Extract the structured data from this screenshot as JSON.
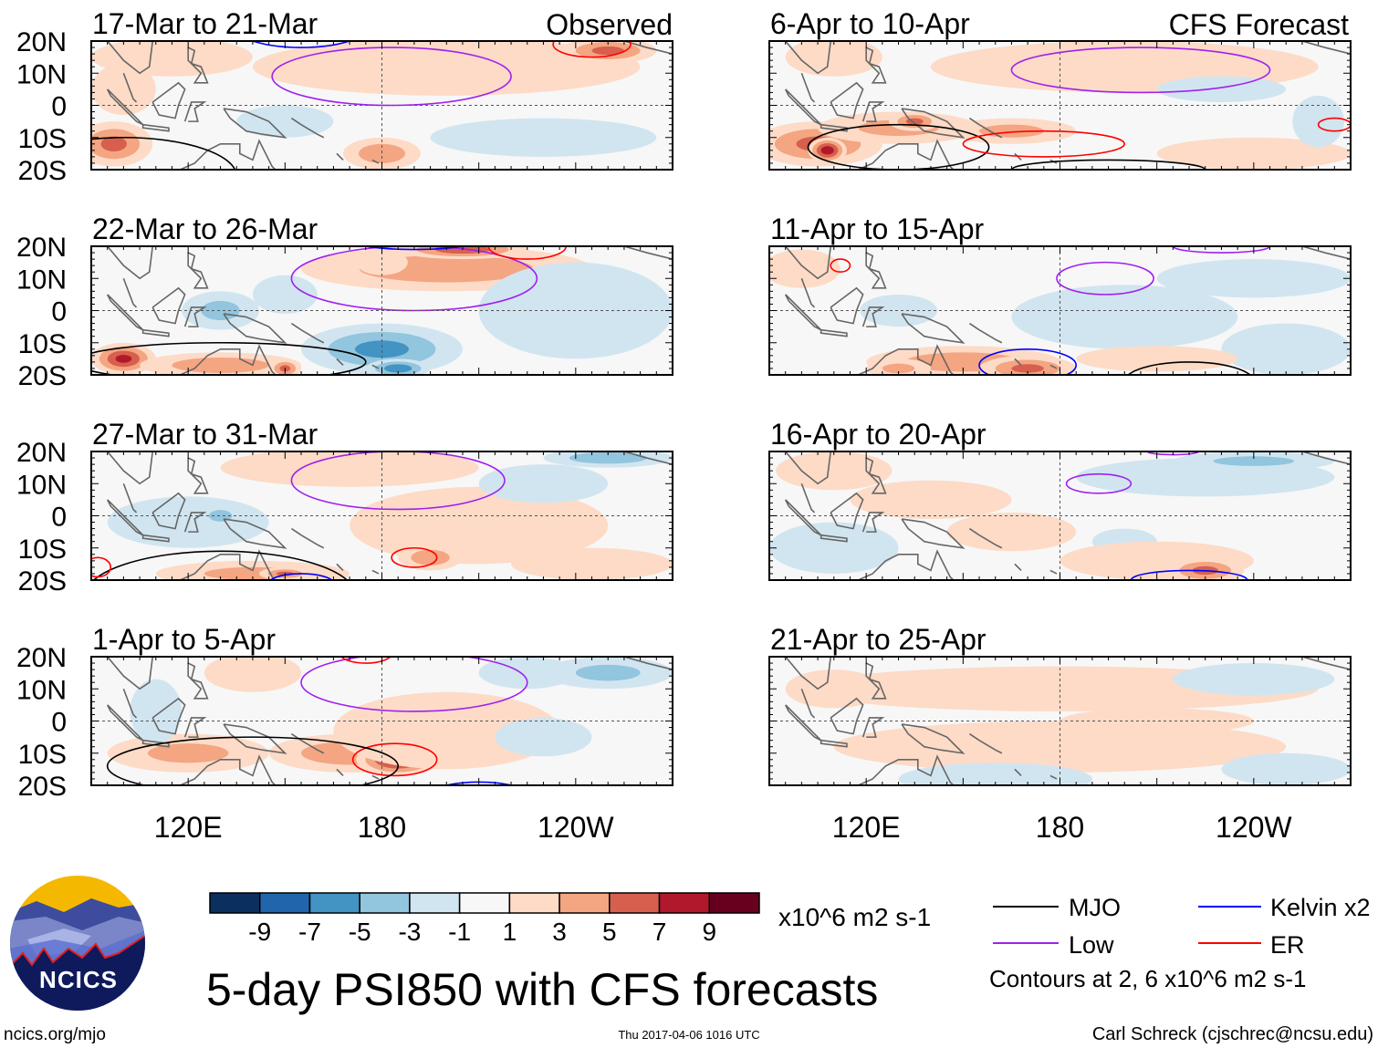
{
  "figure_title": "5-day PSI850 with CFS forecasts",
  "headers": {
    "observed": "Observed",
    "forecast": "CFS Forecast"
  },
  "lat_labels": [
    "20N",
    "10N",
    "0",
    "10S",
    "20S"
  ],
  "lon_labels": [
    "120E",
    "180",
    "120W"
  ],
  "colorbar": {
    "labels": [
      "-9",
      "-7",
      "-5",
      "-3",
      "-1",
      "1",
      "3",
      "5",
      "7",
      "9"
    ],
    "units": "x10^6 m2 s-1",
    "colors": [
      "#0b2f5e",
      "#2166ac",
      "#4393c3",
      "#92c5de",
      "#d1e5f0",
      "#f7f7f7",
      "#fddbc7",
      "#f4a582",
      "#d6604d",
      "#b2182b",
      "#67001f"
    ]
  },
  "legend": {
    "items": [
      {
        "label": "MJO",
        "color": "#000000"
      },
      {
        "label": "Kelvin x2",
        "color": "#0000ff"
      },
      {
        "label": "Low",
        "color": "#a020f0"
      },
      {
        "label": "ER",
        "color": "#ff0000"
      }
    ],
    "note": "Contours at 2, 6 x10^6 m2 s-1"
  },
  "footer": {
    "url": "ncics.org/mjo",
    "timestamp": "Thu 2017-04-06 1016 UTC",
    "credit": "Carl Schreck (cjschrec@ncsu.edu)"
  },
  "logo": {
    "text": "NCICS"
  },
  "chart_data": {
    "type": "heatmap",
    "lon_range": [
      90,
      270
    ],
    "lat_range": [
      -20,
      20
    ],
    "panels": [
      {
        "title": "17-Mar to 21-Mar",
        "section": "observed",
        "anomalies": [
          [
            200,
            12,
            60,
            9,
            2
          ],
          [
            250,
            17,
            15,
            4,
            5
          ],
          [
            115,
            15,
            25,
            6,
            2
          ],
          [
            97,
            -12,
            12,
            7,
            5
          ],
          [
            180,
            -15,
            12,
            5,
            4
          ],
          [
            150,
            -5,
            15,
            5,
            -2
          ],
          [
            230,
            -10,
            35,
            6,
            -2
          ],
          [
            100,
            5,
            10,
            8,
            2
          ]
        ],
        "contours": [
          [
            "low",
            183,
            9,
            37,
            9
          ],
          [
            "kelvin",
            155,
            24,
            20,
            6
          ],
          [
            "er",
            245,
            19,
            12,
            4
          ],
          [
            "mjo",
            100,
            -22,
            35,
            12
          ],
          [
            "er",
            125,
            -23,
            8,
            3
          ]
        ]
      },
      {
        "title": "22-Mar to 26-Mar",
        "section": "observed",
        "anomalies": [
          [
            200,
            13,
            45,
            7,
            4
          ],
          [
            205,
            19,
            20,
            3,
            6
          ],
          [
            100,
            -15,
            10,
            5,
            7
          ],
          [
            130,
            -17,
            25,
            4,
            4
          ],
          [
            150,
            -18,
            5,
            3,
            5
          ],
          [
            180,
            -12,
            25,
            8,
            -5
          ],
          [
            185,
            -18,
            10,
            3,
            -6
          ],
          [
            130,
            0,
            12,
            6,
            -3
          ],
          [
            150,
            5,
            10,
            6,
            -2
          ],
          [
            240,
            0,
            30,
            15,
            -2
          ],
          [
            180,
            15,
            8,
            4,
            2
          ]
        ],
        "contours": [
          [
            "low",
            190,
            10,
            38,
            10
          ],
          [
            "er",
            225,
            20,
            12,
            4
          ],
          [
            "mjo",
            130,
            -16,
            45,
            6
          ],
          [
            "kelvin",
            190,
            22,
            20,
            3
          ]
        ]
      },
      {
        "title": "27-Mar to 31-Mar",
        "section": "observed",
        "anomalies": [
          [
            170,
            15,
            40,
            6,
            2
          ],
          [
            210,
            -3,
            40,
            12,
            2
          ],
          [
            245,
            -15,
            25,
            5,
            2
          ],
          [
            195,
            -13,
            10,
            4,
            4
          ],
          [
            140,
            -18,
            30,
            4,
            3
          ],
          [
            150,
            -18,
            8,
            2,
            5
          ],
          [
            120,
            -2,
            25,
            8,
            -2
          ],
          [
            130,
            0,
            6,
            3,
            -4
          ],
          [
            250,
            18,
            20,
            3,
            -4
          ],
          [
            150,
            15,
            10,
            4,
            2
          ],
          [
            230,
            10,
            20,
            6,
            -2
          ]
        ],
        "contours": [
          [
            "low",
            185,
            11,
            33,
            9
          ],
          [
            "mjo",
            130,
            -25,
            42,
            14
          ],
          [
            "er",
            190,
            -13,
            7,
            3
          ],
          [
            "kelvin",
            155,
            -21,
            10,
            3
          ],
          [
            "er",
            92,
            -16,
            4,
            3
          ]
        ]
      },
      {
        "title": "1-Apr to 5-Apr",
        "section": "observed",
        "anomalies": [
          [
            120,
            -10,
            25,
            6,
            3
          ],
          [
            170,
            -10,
            25,
            6,
            4
          ],
          [
            185,
            -12,
            13,
            5,
            8
          ],
          [
            200,
            -3,
            35,
            12,
            2
          ],
          [
            140,
            15,
            15,
            6,
            2
          ],
          [
            250,
            15,
            20,
            5,
            -3
          ],
          [
            225,
            15,
            15,
            5,
            -2
          ],
          [
            110,
            3,
            8,
            10,
            -2
          ],
          [
            230,
            -5,
            15,
            6,
            -2
          ]
        ],
        "contours": [
          [
            "low",
            190,
            12,
            35,
            9
          ],
          [
            "er",
            184,
            -12,
            13,
            5
          ],
          [
            "er",
            175,
            21,
            8,
            3
          ],
          [
            "mjo",
            140,
            -14,
            45,
            9
          ],
          [
            "kelvin",
            210,
            -23,
            15,
            4
          ],
          [
            "mjo",
            110,
            -25,
            25,
            5
          ]
        ]
      },
      {
        "title": "6-Apr to 10-Apr",
        "section": "forecast",
        "anomalies": [
          [
            200,
            12,
            60,
            8,
            2
          ],
          [
            105,
            -12,
            20,
            7,
            5
          ],
          [
            108,
            -14,
            6,
            4,
            8
          ],
          [
            130,
            -7,
            25,
            5,
            3
          ],
          [
            135,
            -5,
            8,
            3,
            5
          ],
          [
            165,
            -8,
            20,
            4,
            3
          ],
          [
            240,
            -15,
            30,
            5,
            2
          ],
          [
            230,
            5,
            20,
            4,
            -2
          ],
          [
            260,
            -5,
            8,
            8,
            -2
          ],
          [
            110,
            15,
            15,
            6,
            2
          ]
        ],
        "contours": [
          [
            "low",
            205,
            11,
            40,
            7
          ],
          [
            "mjo",
            130,
            -13,
            28,
            7
          ],
          [
            "er",
            175,
            -12,
            25,
            4
          ],
          [
            "mjo",
            195,
            -20,
            30,
            3
          ],
          [
            "er",
            265,
            -6,
            5,
            2
          ]
        ]
      },
      {
        "title": "11-Apr to 15-Apr",
        "section": "forecast",
        "anomalies": [
          [
            100,
            13,
            12,
            6,
            2
          ],
          [
            150,
            -16,
            30,
            5,
            4
          ],
          [
            170,
            -18,
            15,
            4,
            5
          ],
          [
            130,
            -18,
            10,
            3,
            3
          ],
          [
            200,
            -2,
            35,
            10,
            -2
          ],
          [
            240,
            10,
            30,
            6,
            -2
          ],
          [
            250,
            -12,
            20,
            8,
            -2
          ],
          [
            130,
            0,
            12,
            5,
            -2
          ],
          [
            210,
            -15,
            25,
            4,
            2
          ]
        ],
        "contours": [
          [
            "low",
            194,
            10,
            15,
            5
          ],
          [
            "er",
            112,
            14,
            3,
            2
          ],
          [
            "kelvin",
            170,
            -17,
            15,
            5
          ],
          [
            "mjo",
            220,
            -22,
            20,
            6
          ],
          [
            "low",
            230,
            20,
            15,
            2
          ]
        ]
      },
      {
        "title": "16-Apr to 20-Apr",
        "section": "forecast",
        "anomalies": [
          [
            110,
            14,
            18,
            6,
            2
          ],
          [
            140,
            5,
            25,
            6,
            2
          ],
          [
            225,
            12,
            40,
            6,
            -2
          ],
          [
            240,
            17,
            25,
            3,
            -3
          ],
          [
            200,
            -8,
            10,
            4,
            -2
          ],
          [
            110,
            -10,
            20,
            8,
            -2
          ],
          [
            210,
            -14,
            30,
            6,
            2
          ],
          [
            225,
            -17,
            12,
            4,
            5
          ],
          [
            165,
            -5,
            20,
            6,
            2
          ]
        ],
        "contours": [
          [
            "low",
            192,
            10,
            10,
            3
          ],
          [
            "kelvin",
            220,
            -20,
            18,
            3
          ],
          [
            "mjo",
            215,
            -22,
            8,
            2
          ],
          [
            "low",
            215,
            20,
            8,
            1
          ]
        ]
      },
      {
        "title": "21-Apr to 25-Apr",
        "section": "forecast",
        "anomalies": [
          [
            180,
            10,
            80,
            7,
            2
          ],
          [
            240,
            13,
            25,
            5,
            -2
          ],
          [
            110,
            10,
            15,
            6,
            2
          ],
          [
            180,
            -8,
            70,
            8,
            2
          ],
          [
            160,
            -18,
            30,
            5,
            -2
          ],
          [
            250,
            -15,
            20,
            5,
            -2
          ],
          [
            210,
            0,
            30,
            4,
            2
          ]
        ],
        "contours": []
      }
    ]
  }
}
